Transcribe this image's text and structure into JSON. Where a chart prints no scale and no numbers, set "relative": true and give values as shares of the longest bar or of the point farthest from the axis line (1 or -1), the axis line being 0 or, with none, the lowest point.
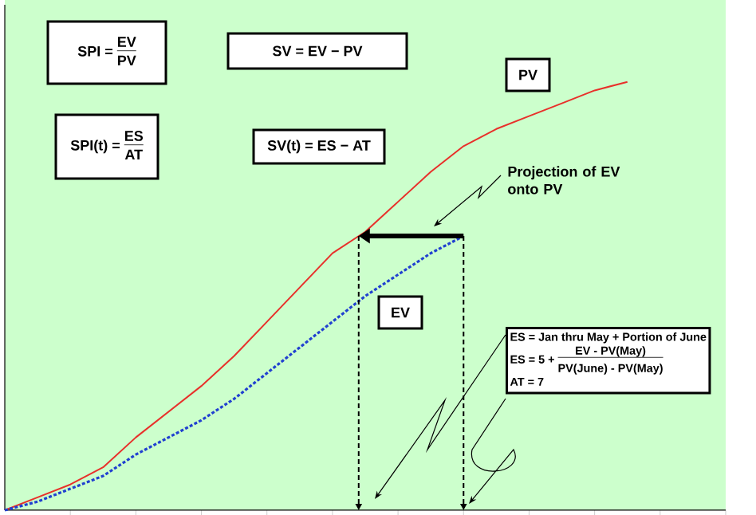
{
  "chart_data": {
    "type": "line",
    "relative": true,
    "categories": [
      null,
      null,
      null,
      null,
      null,
      null,
      null,
      null,
      null,
      null,
      null,
      null,
      null,
      null,
      null,
      null,
      null,
      null,
      null,
      null
    ],
    "series": [
      {
        "name": "PV",
        "color": "#e8302a",
        "line_style": "solid",
        "values": [
          0,
          0.03,
          0.06,
          0.1,
          0.17,
          0.23,
          0.29,
          0.36,
          0.44,
          0.52,
          0.6,
          0.65,
          0.72,
          0.79,
          0.85,
          0.89,
          0.92,
          0.95,
          0.98,
          1.0
        ]
      },
      {
        "name": "EV",
        "color": "#2040d0",
        "line_style": "dotted",
        "values": [
          0,
          0.02,
          0.05,
          0.08,
          0.13,
          0.17,
          0.21,
          0.26,
          0.32,
          0.38,
          0.44,
          0.5,
          0.55,
          0.6,
          0.64,
          null,
          null,
          null,
          null,
          null
        ]
      }
    ],
    "annotations": [
      "SPI =",
      "EV",
      "PV",
      "SV = EV − PV",
      "SPI(t) =",
      "ES",
      "AT",
      "SV(t) = ES − AT",
      "Projection of EV onto PV",
      "ES = Jan thru May + Portion of June",
      "ES = 5 +",
      "EV - PV(May)",
      "PV(June) - PV(May)",
      "AT = 7"
    ]
  }
}
